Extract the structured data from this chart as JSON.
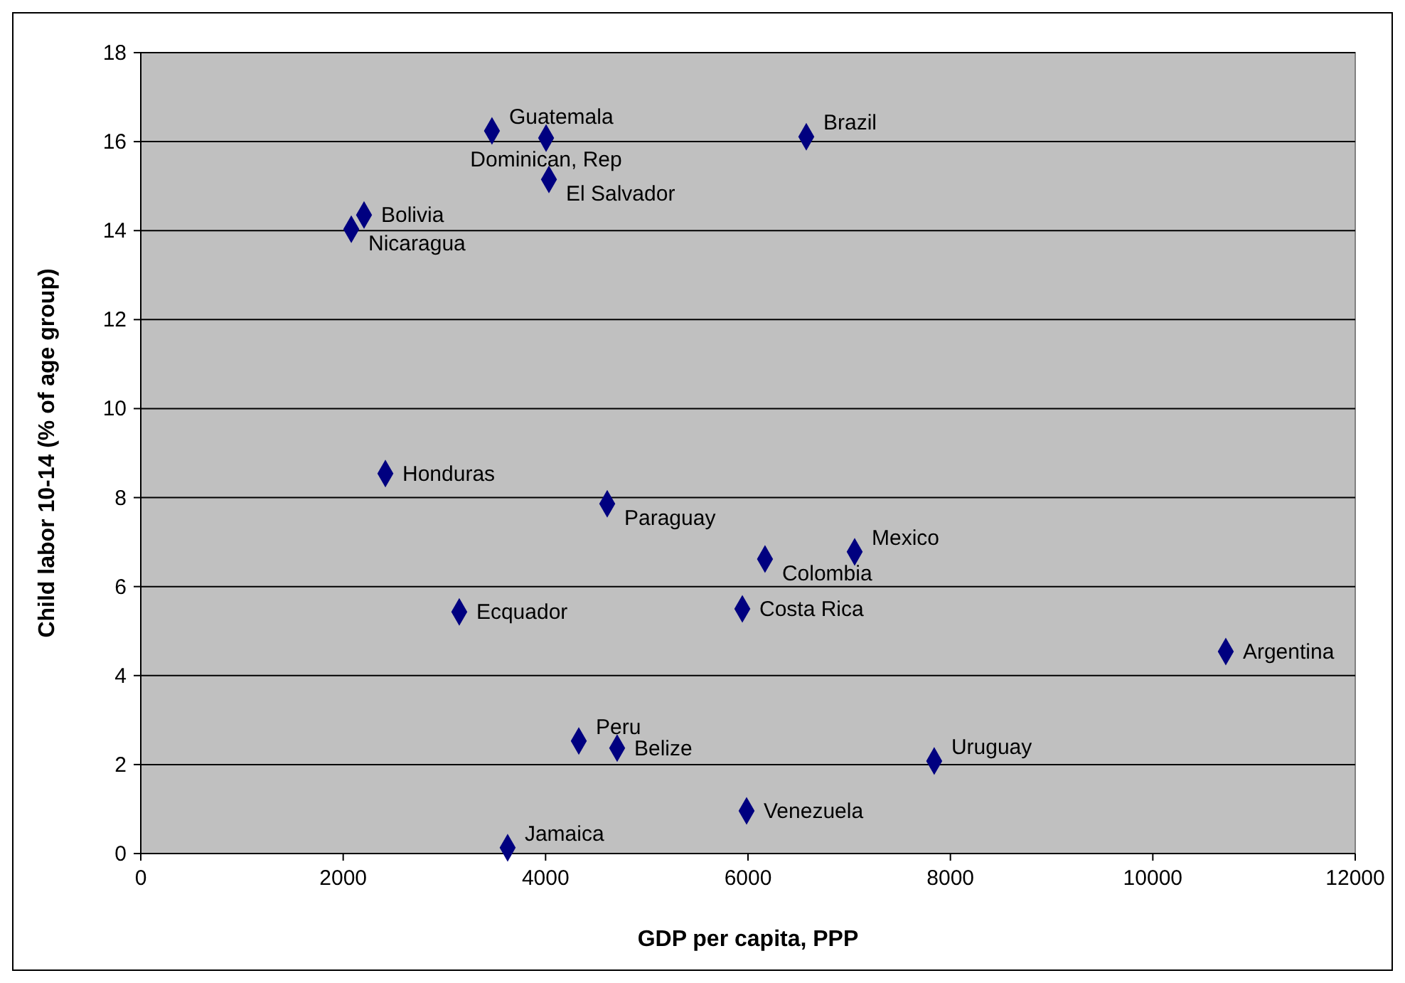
{
  "chart_data": {
    "type": "scatter",
    "xlabel": "GDP per capita, PPP",
    "ylabel": "Child labor 10-14 (% of age group)",
    "x": [
      3470,
      4005,
      6576,
      4033,
      2206,
      2080,
      2417,
      4609,
      6168,
      7054,
      5944,
      3147,
      10721,
      4328,
      4707,
      7840,
      5986,
      3625
    ],
    "series": [
      {
        "color": "#000080",
        "values": [
          16.24,
          16.08,
          16.11,
          15.15,
          14.35,
          14.03,
          8.54,
          7.86,
          6.62,
          6.78,
          5.5,
          5.43,
          4.54,
          2.53,
          2.37,
          2.08,
          0.96,
          0.13
        ]
      }
    ],
    "annotations": [
      {
        "text": "Guatemala",
        "x": 3470,
        "y": 16.24
      },
      {
        "text": "Dominican, Rep",
        "x": 4005,
        "y": 16.08
      },
      {
        "text": "Brazil",
        "x": 6576,
        "y": 16.11
      },
      {
        "text": "El Salvador",
        "x": 4033,
        "y": 15.15
      },
      {
        "text": "Bolivia",
        "x": 2206,
        "y": 14.35
      },
      {
        "text": "Nicaragua",
        "x": 2080,
        "y": 14.03
      },
      {
        "text": "Honduras",
        "x": 2417,
        "y": 8.54
      },
      {
        "text": "Paraguay",
        "x": 4609,
        "y": 7.86
      },
      {
        "text": "Colombia",
        "x": 6168,
        "y": 6.62
      },
      {
        "text": "Mexico",
        "x": 7054,
        "y": 6.78
      },
      {
        "text": "Costa Rica",
        "x": 5944,
        "y": 5.5
      },
      {
        "text": "Ecquador",
        "x": 3147,
        "y": 5.43
      },
      {
        "text": "Argentina",
        "x": 10721,
        "y": 4.54
      },
      {
        "text": "Peru",
        "x": 4328,
        "y": 2.53
      },
      {
        "text": "Belize",
        "x": 4707,
        "y": 2.37
      },
      {
        "text": "Uruguay",
        "x": 7840,
        "y": 2.08
      },
      {
        "text": "Venezuela",
        "x": 5986,
        "y": 0.96
      },
      {
        "text": "Jamaica",
        "x": 3625,
        "y": 0.13
      }
    ],
    "xlim": [
      0,
      12000
    ],
    "xticks": [
      0,
      2000,
      4000,
      6000,
      8000,
      10000,
      12000
    ],
    "ylim": [
      0,
      18
    ],
    "yticks": [
      0,
      2,
      4,
      6,
      8,
      10,
      12,
      14,
      16,
      18
    ],
    "grid": "y",
    "marker": "diamond"
  }
}
